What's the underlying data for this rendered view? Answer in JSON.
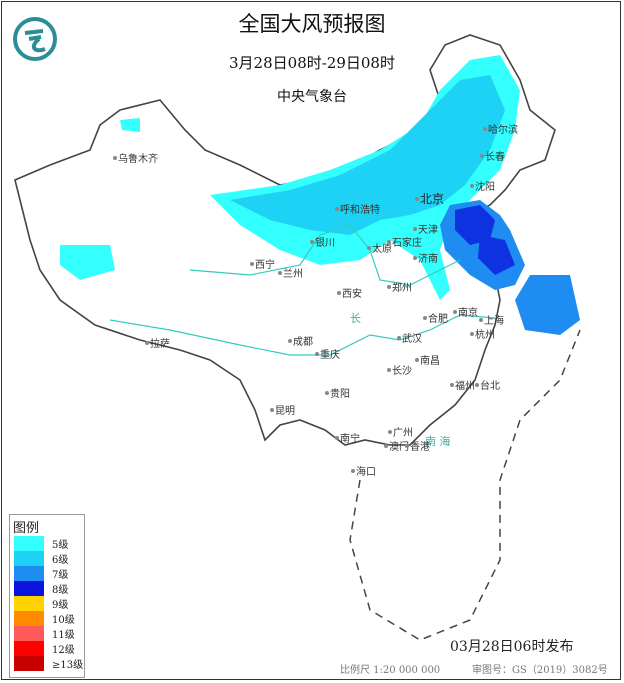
{
  "header": {
    "title": "全国大风预报图",
    "period": "3月28日08时-29日08时",
    "agency": "中央气象台",
    "logo_icon": "cma-dragon-logo"
  },
  "legend": {
    "title": "图例",
    "items": [
      {
        "label": "5级",
        "color": "#33ffff"
      },
      {
        "label": "6级",
        "color": "#1ed2f5"
      },
      {
        "label": "7级",
        "color": "#1e8cf0"
      },
      {
        "label": "8级",
        "color": "#0a14dc"
      },
      {
        "label": "9级",
        "color": "#ffd200"
      },
      {
        "label": "10级",
        "color": "#ff8c00"
      },
      {
        "label": "11级",
        "color": "#ff5a5a"
      },
      {
        "label": "12级",
        "color": "#ff0000"
      },
      {
        "label": "≥13级",
        "color": "#c80000"
      }
    ]
  },
  "footer": {
    "issue_time": "03月28日06时发布",
    "scale": "比例尺 1:20 000 000",
    "approval": "审图号：GS（2019）3082号"
  },
  "map": {
    "cities": [
      {
        "name": "乌鲁木齐"
      },
      {
        "name": "哈尔滨"
      },
      {
        "name": "长春"
      },
      {
        "name": "沈阳"
      },
      {
        "name": "北京",
        "capital": true
      },
      {
        "name": "天津"
      },
      {
        "name": "呼和浩特"
      },
      {
        "name": "银川"
      },
      {
        "name": "太原"
      },
      {
        "name": "石家庄"
      },
      {
        "name": "济南"
      },
      {
        "name": "西宁"
      },
      {
        "name": "兰州"
      },
      {
        "name": "西安"
      },
      {
        "name": "郑州"
      },
      {
        "name": "拉萨"
      },
      {
        "name": "成都"
      },
      {
        "name": "重庆"
      },
      {
        "name": "武汉"
      },
      {
        "name": "合肥"
      },
      {
        "name": "南京"
      },
      {
        "name": "上海"
      },
      {
        "name": "杭州"
      },
      {
        "name": "南昌"
      },
      {
        "name": "长沙"
      },
      {
        "name": "贵阳"
      },
      {
        "name": "昆明"
      },
      {
        "name": "福州"
      },
      {
        "name": "台北"
      },
      {
        "name": "南宁"
      },
      {
        "name": "广州"
      },
      {
        "name": "澳门"
      },
      {
        "name": "香港"
      },
      {
        "name": "海口"
      }
    ],
    "sea_label": "南 海",
    "river_label": "长"
  }
}
